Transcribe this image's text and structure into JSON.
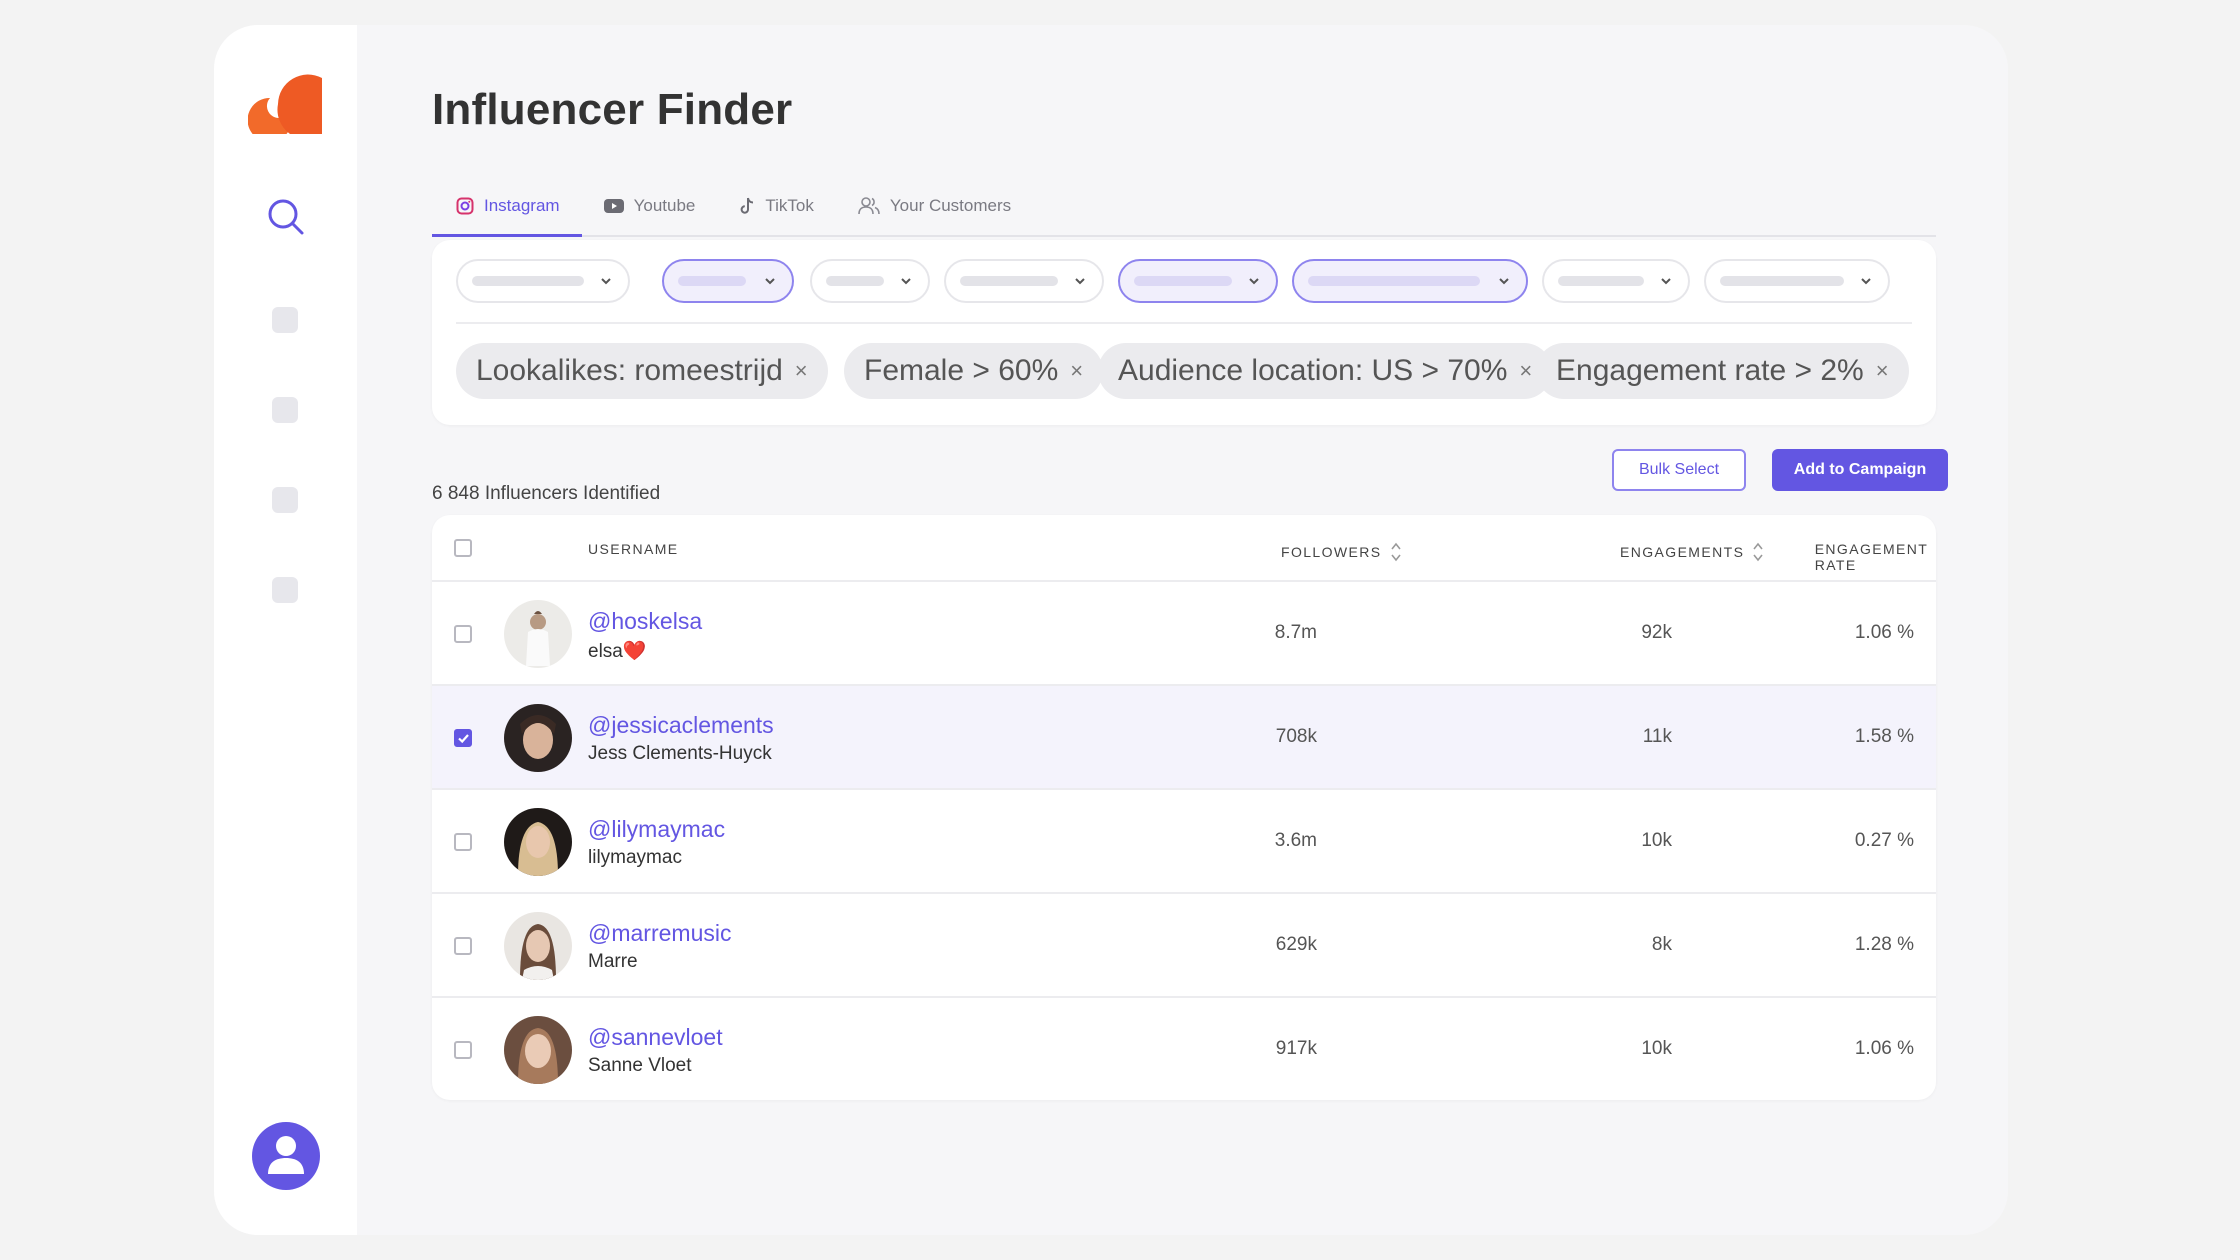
{
  "page": {
    "title": "Influencer Finder"
  },
  "tabs": [
    {
      "label": "Instagram",
      "icon": "instagram-icon",
      "active": true
    },
    {
      "label": "Youtube",
      "icon": "youtube-icon",
      "active": false
    },
    {
      "label": "TikTok",
      "icon": "tiktok-icon",
      "active": false
    },
    {
      "label": "Your Customers",
      "icon": "users-icon",
      "active": false
    }
  ],
  "filters": {
    "active_chips": [
      {
        "label": "Lookalikes: romeestrijd"
      },
      {
        "label": "Female > 60%"
      },
      {
        "label": "Audience location: US > 70%"
      },
      {
        "label": "Engagement rate > 2%"
      }
    ],
    "remove_glyph": "×"
  },
  "results": {
    "count_text": "6 848 Influencers Identified",
    "bulk_select_label": "Bulk Select",
    "add_campaign_label": "Add to Campaign"
  },
  "table": {
    "columns": {
      "username": "USERNAME",
      "followers": "FOLLOWERS",
      "engagements": "ENGAGEMENTS",
      "engagement_rate": "ENGAGEMENT RATE"
    },
    "rows": [
      {
        "handle": "@hoskelsa",
        "name": "elsa❤️",
        "followers": "8.7m",
        "engagements": "92k",
        "rate": "1.06 %",
        "selected": false
      },
      {
        "handle": "@jessicaclements",
        "name": "Jess Clements-Huyck",
        "followers": "708k",
        "engagements": "11k",
        "rate": "1.58 %",
        "selected": true
      },
      {
        "handle": "@lilymaymac",
        "name": "lilymaymac",
        "followers": "3.6m",
        "engagements": "10k",
        "rate": "0.27 %",
        "selected": false
      },
      {
        "handle": "@marremusic",
        "name": "Marre",
        "followers": "629k",
        "engagements": "8k",
        "rate": "1.28 %",
        "selected": false
      },
      {
        "handle": "@sannevloet",
        "name": "Sanne Vloet",
        "followers": "917k",
        "engagements": "10k",
        "rate": "1.06 %",
        "selected": false
      }
    ]
  },
  "colors": {
    "accent": "#6356e2",
    "brand": "#ee5a24"
  }
}
